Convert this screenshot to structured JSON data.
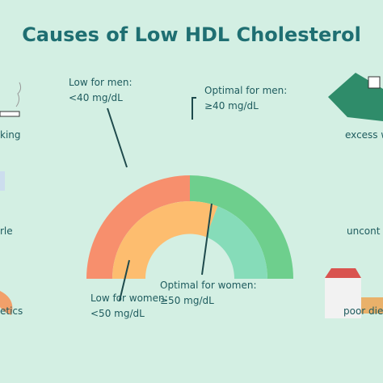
{
  "header": {
    "title": "Causes of Low HDL Cholesterol"
  },
  "gauge": {
    "low_men": {
      "title": "Low for men:",
      "value": "<40 mg/dL"
    },
    "optimal_men": {
      "title": "Optimal for men:",
      "value": "≥40 mg/dL"
    },
    "optimal_women": {
      "title": "Optimal for women:",
      "value": "≥50 mg/dL"
    },
    "low_women": {
      "title": "Low for women:",
      "value": "<50 mg/dL"
    }
  },
  "causes": [
    "king",
    "rle",
    "etics",
    "excess w",
    "uncont",
    "poor die"
  ]
}
